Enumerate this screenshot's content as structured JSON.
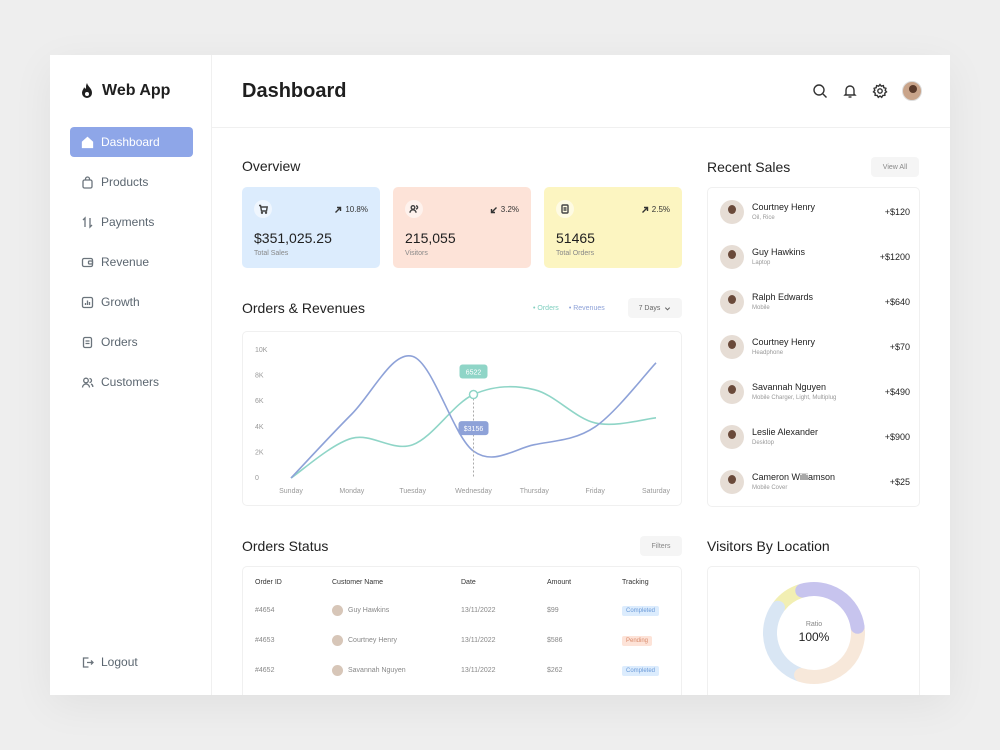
{
  "app": {
    "name": "Web App"
  },
  "sidebar": {
    "items": [
      {
        "label": "Dashboard",
        "icon": "home-icon",
        "active": true
      },
      {
        "label": "Products",
        "icon": "bag-icon"
      },
      {
        "label": "Payments",
        "icon": "transfer-icon"
      },
      {
        "label": "Revenue",
        "icon": "wallet-icon"
      },
      {
        "label": "Growth",
        "icon": "chart-icon"
      },
      {
        "label": "Orders",
        "icon": "document-icon"
      },
      {
        "label": "Customers",
        "icon": "users-icon"
      }
    ],
    "logout": "Logout"
  },
  "header": {
    "title": "Dashboard",
    "icons": [
      "search-icon",
      "bell-icon",
      "gear-icon",
      "user-avatar"
    ]
  },
  "overview": {
    "title": "Overview",
    "cards": [
      {
        "value": "$351,025.25",
        "label": "Total Sales",
        "change": "10.8%",
        "direction": "up",
        "icon": "cart-icon",
        "color": "#dcecfd"
      },
      {
        "value": "215,055",
        "label": "Visitors",
        "change": "3.2%",
        "direction": "down",
        "icon": "users-icon",
        "color": "#fde3d8"
      },
      {
        "value": "51465",
        "label": "Total Orders",
        "change": "2.5%",
        "direction": "up",
        "icon": "receipt-icon",
        "color": "#fcf5c1"
      }
    ]
  },
  "orders_revenues": {
    "title": "Orders & Revenues",
    "legend": [
      "Orders",
      "Revenues"
    ],
    "period": "7 Days",
    "tooltip_orders": "6522",
    "tooltip_revenues": "$3156"
  },
  "chart_data": {
    "type": "line",
    "x": [
      "Sunday",
      "Monday",
      "Tuesday",
      "Wednesday",
      "Thursday",
      "Friday",
      "Saturday"
    ],
    "y_ticks": [
      "10K",
      "8K",
      "6K",
      "4K",
      "2K",
      "0"
    ],
    "ylim": [
      0,
      10000
    ],
    "series": [
      {
        "name": "Orders",
        "color": "#8fd5c7",
        "values": [
          0,
          3100,
          2600,
          6522,
          6900,
          4300,
          4700
        ]
      },
      {
        "name": "Revenues",
        "color": "#8ea2d8",
        "values": [
          0,
          5000,
          9500,
          2100,
          2600,
          4000,
          9000
        ]
      }
    ]
  },
  "orders_status": {
    "title": "Orders Status",
    "filters": "Filters",
    "columns": [
      "Order ID",
      "Customer Name",
      "Date",
      "Amount",
      "Tracking"
    ],
    "rows": [
      {
        "id": "#4654",
        "name": "Guy Hawkins",
        "date": "13/11/2022",
        "amount": "$99",
        "status": "Completed"
      },
      {
        "id": "#4653",
        "name": "Courtney Henry",
        "date": "13/11/2022",
        "amount": "$586",
        "status": "Pending"
      },
      {
        "id": "#4652",
        "name": "Savannah Nguyen",
        "date": "13/11/2022",
        "amount": "$262",
        "status": "Completed"
      }
    ]
  },
  "recent_sales": {
    "title": "Recent Sales",
    "view_all": "View All",
    "items": [
      {
        "name": "Courtney Henry",
        "desc": "Oil, Rice",
        "amount": "+$120"
      },
      {
        "name": "Guy Hawkins",
        "desc": "Laptop",
        "amount": "+$1200"
      },
      {
        "name": "Ralph Edwards",
        "desc": "Mobile",
        "amount": "+$640"
      },
      {
        "name": "Courtney Henry",
        "desc": "Headphone",
        "amount": "+$70"
      },
      {
        "name": "Savannah Nguyen",
        "desc": "Mobile Charger, Light, Multiplug",
        "amount": "+$490"
      },
      {
        "name": "Leslie Alexander",
        "desc": "Desktop",
        "amount": "+$900"
      },
      {
        "name": "Cameron Williamson",
        "desc": "Mobile Cover",
        "amount": "+$25"
      }
    ]
  },
  "visitors": {
    "title": "Visitors By Location",
    "ratio_label": "Ratio",
    "ratio_value": "100%",
    "segments": [
      {
        "color": "#c7c4ee",
        "value": 28
      },
      {
        "color": "#f7e8da",
        "value": 32
      },
      {
        "color": "#d9e6f4",
        "value": 30
      },
      {
        "color": "#f2efb3",
        "value": 10
      }
    ]
  }
}
